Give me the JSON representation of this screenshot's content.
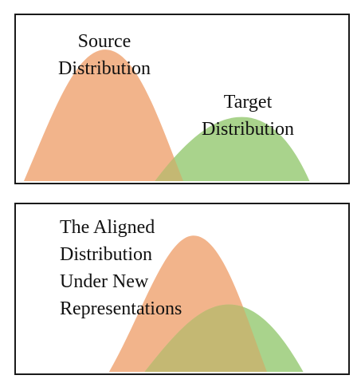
{
  "colors": {
    "source": "#f2b48b",
    "target": "#a9d38c",
    "overlap": "#c4b873",
    "border": "#1a1a1a"
  },
  "top_panel": {
    "source_label": [
      "Source",
      "Distribution"
    ],
    "target_label": [
      "Target",
      "Distribution"
    ]
  },
  "bottom_panel": {
    "aligned_label": [
      "The Aligned",
      "Distribution",
      "Under New",
      "Representations"
    ]
  }
}
